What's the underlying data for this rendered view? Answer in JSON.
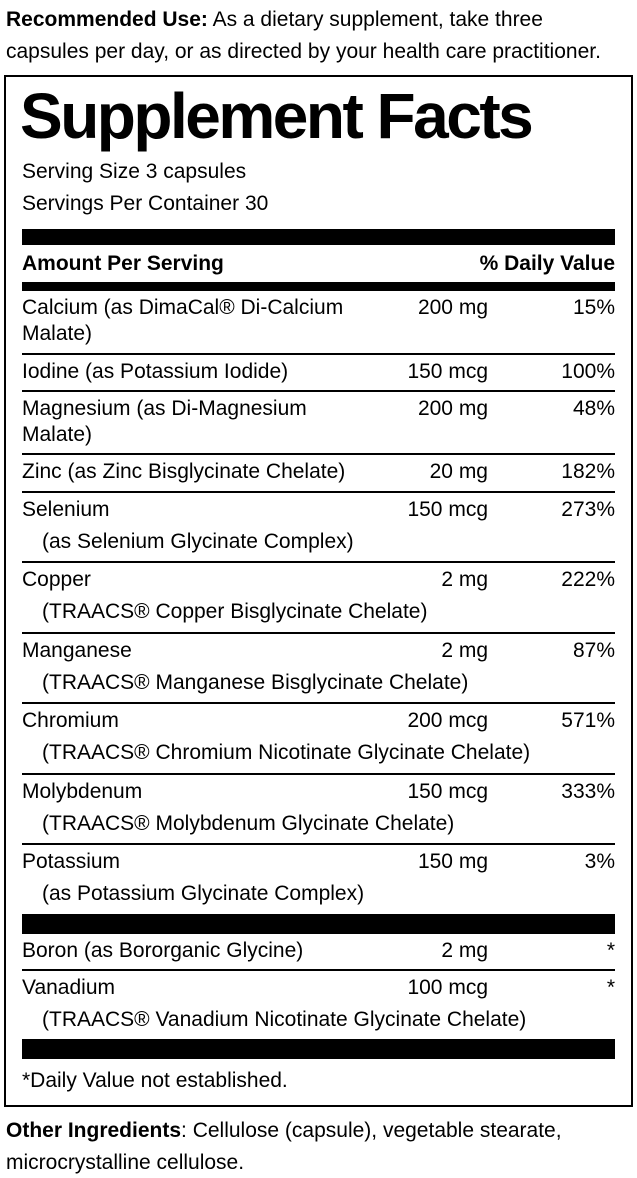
{
  "recommended_use": {
    "label": "Recommended Use:",
    "text": " As a dietary supplement, take three capsules per day, or as directed by your health care practitioner."
  },
  "panel": {
    "title": "Supplement Facts",
    "serving_size": "Serving Size 3 capsules",
    "servings_per_container": "Servings Per Container 30",
    "columns": {
      "amount": "Amount Per Serving",
      "daily_value": "% Daily Value"
    },
    "rows": [
      {
        "name": "Calcium (as DimaCal® Di-Calcium Malate)",
        "sub": "",
        "amount": "200 mg",
        "dv": "15%"
      },
      {
        "name": "Iodine (as Potassium Iodide)",
        "sub": "",
        "amount": "150 mcg",
        "dv": "100%"
      },
      {
        "name": "Magnesium (as Di-Magnesium Malate)",
        "sub": "",
        "amount": "200 mg",
        "dv": "48%"
      },
      {
        "name": "Zinc (as Zinc Bisglycinate Chelate)",
        "sub": "",
        "amount": "20 mg",
        "dv": "182%"
      },
      {
        "name": "Selenium",
        "sub": "(as Selenium Glycinate Complex)",
        "amount": "150 mcg",
        "dv": "273%"
      },
      {
        "name": "Copper",
        "sub": "(TRAACS® Copper Bisglycinate Chelate)",
        "amount": "2 mg",
        "dv": "222%"
      },
      {
        "name": "Manganese",
        "sub": "(TRAACS® Manganese Bisglycinate Chelate)",
        "amount": "2 mg",
        "dv": "87%"
      },
      {
        "name": "Chromium",
        "sub": "(TRAACS® Chromium Nicotinate Glycinate Chelate)",
        "amount": "200 mcg",
        "dv": "571%"
      },
      {
        "name": "Molybdenum",
        "sub": "(TRAACS® Molybdenum Glycinate Chelate)",
        "amount": "150 mcg",
        "dv": "333%"
      },
      {
        "name": "Potassium",
        "sub": "(as Potassium Glycinate Complex)",
        "amount": "150 mg",
        "dv": "3%"
      }
    ],
    "rows_no_dv": [
      {
        "name": "Boron (as Bororganic Glycine)",
        "sub": "",
        "amount": "2 mg",
        "dv": "*"
      },
      {
        "name": "Vanadium",
        "sub": "(TRAACS® Vanadium Nicotinate Glycinate Chelate)",
        "amount": "100 mcg",
        "dv": "*"
      }
    ],
    "footnote": "*Daily Value not established."
  },
  "other_ingredients": {
    "label": "Other Ingredients",
    "text": ": Cellulose (capsule), vegetable stearate, microcrystalline cellulose."
  }
}
